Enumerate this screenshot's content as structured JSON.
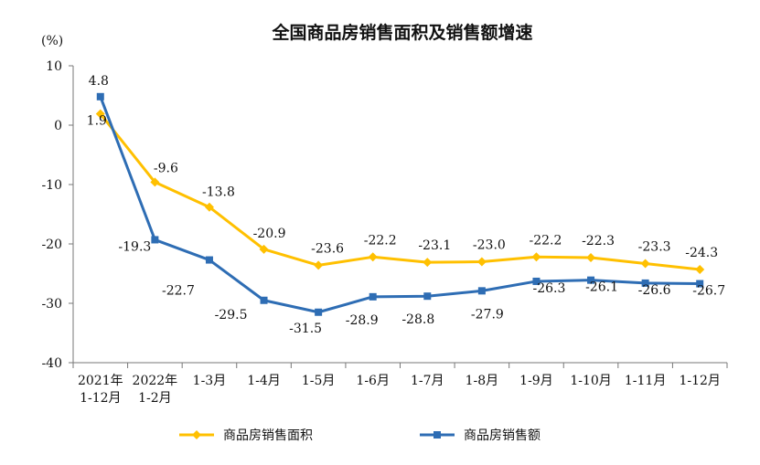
{
  "chart_data": {
    "type": "line",
    "title": "全国商品房销售面积及销售额增速",
    "unit_label": "(%)",
    "x": [
      "2021年\n1-12月",
      "2022年\n1-2月",
      "1-3月",
      "1-4月",
      "1-5月",
      "1-6月",
      "1-7月",
      "1-8月",
      "1-9月",
      "1-10月",
      "1-11月",
      "1-12月"
    ],
    "ylim": [
      -40,
      10
    ],
    "yticks": [
      10,
      0,
      -10,
      -20,
      -30,
      -40
    ],
    "series": [
      {
        "name": "商品房销售面积",
        "color": "#FFC000",
        "marker": "diamond",
        "values": [
          1.9,
          -9.6,
          -13.8,
          -20.9,
          -23.6,
          -22.2,
          -23.1,
          -23.0,
          -22.2,
          -22.3,
          -23.3,
          -24.3
        ],
        "labels": [
          "1.9",
          "-9.6",
          "-13.8",
          "-20.9",
          "-23.6",
          "-22.2",
          "-23.1",
          "-23.0",
          "-22.2",
          "-22.3",
          "-23.3",
          "-24.3"
        ]
      },
      {
        "name": "商品房销售额",
        "color": "#2E6DB4",
        "marker": "square",
        "values": [
          4.8,
          -19.3,
          -22.7,
          -29.5,
          -31.5,
          -28.9,
          -28.8,
          -27.9,
          -26.3,
          -26.1,
          -26.6,
          -26.7
        ],
        "labels": [
          "4.8",
          "-19.3",
          "-22.7",
          "-29.5",
          "-31.5",
          "-28.9",
          "-28.8",
          "-27.9",
          "-26.3",
          "-26.1",
          "-26.6",
          "-26.7"
        ]
      }
    ],
    "grid": false,
    "legend_position": "bottom"
  }
}
